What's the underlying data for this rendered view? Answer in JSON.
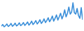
{
  "chart_data": {
    "type": "line",
    "color": "#3b8fd9",
    "tick_labels": false,
    "x": [
      0,
      1,
      2,
      3,
      4,
      5,
      6,
      7,
      8,
      9,
      10,
      11,
      12,
      13,
      14,
      15,
      16,
      17,
      18,
      19,
      20,
      21,
      22,
      23,
      24,
      25,
      26,
      27,
      28,
      29,
      30,
      31,
      32,
      33,
      34,
      35,
      36,
      37,
      38,
      39,
      40,
      41,
      42,
      43,
      44,
      45,
      46,
      47,
      48,
      49,
      50,
      51,
      52,
      53,
      54,
      55,
      56,
      57,
      58,
      59
    ],
    "values": [
      12,
      18,
      10,
      14,
      20,
      11,
      15,
      22,
      12,
      16,
      23,
      13,
      17,
      24,
      14,
      18,
      25,
      15,
      20,
      27,
      16,
      22,
      30,
      18,
      24,
      32,
      20,
      26,
      35,
      22,
      28,
      38,
      25,
      32,
      42,
      28,
      36,
      48,
      30,
      40,
      52,
      34,
      45,
      58,
      38,
      50,
      70,
      45,
      58,
      80,
      55,
      62,
      95,
      60,
      55,
      75,
      50,
      40,
      78,
      35
    ],
    "xlim": [
      0,
      59
    ],
    "ylim": [
      0,
      100
    ]
  }
}
